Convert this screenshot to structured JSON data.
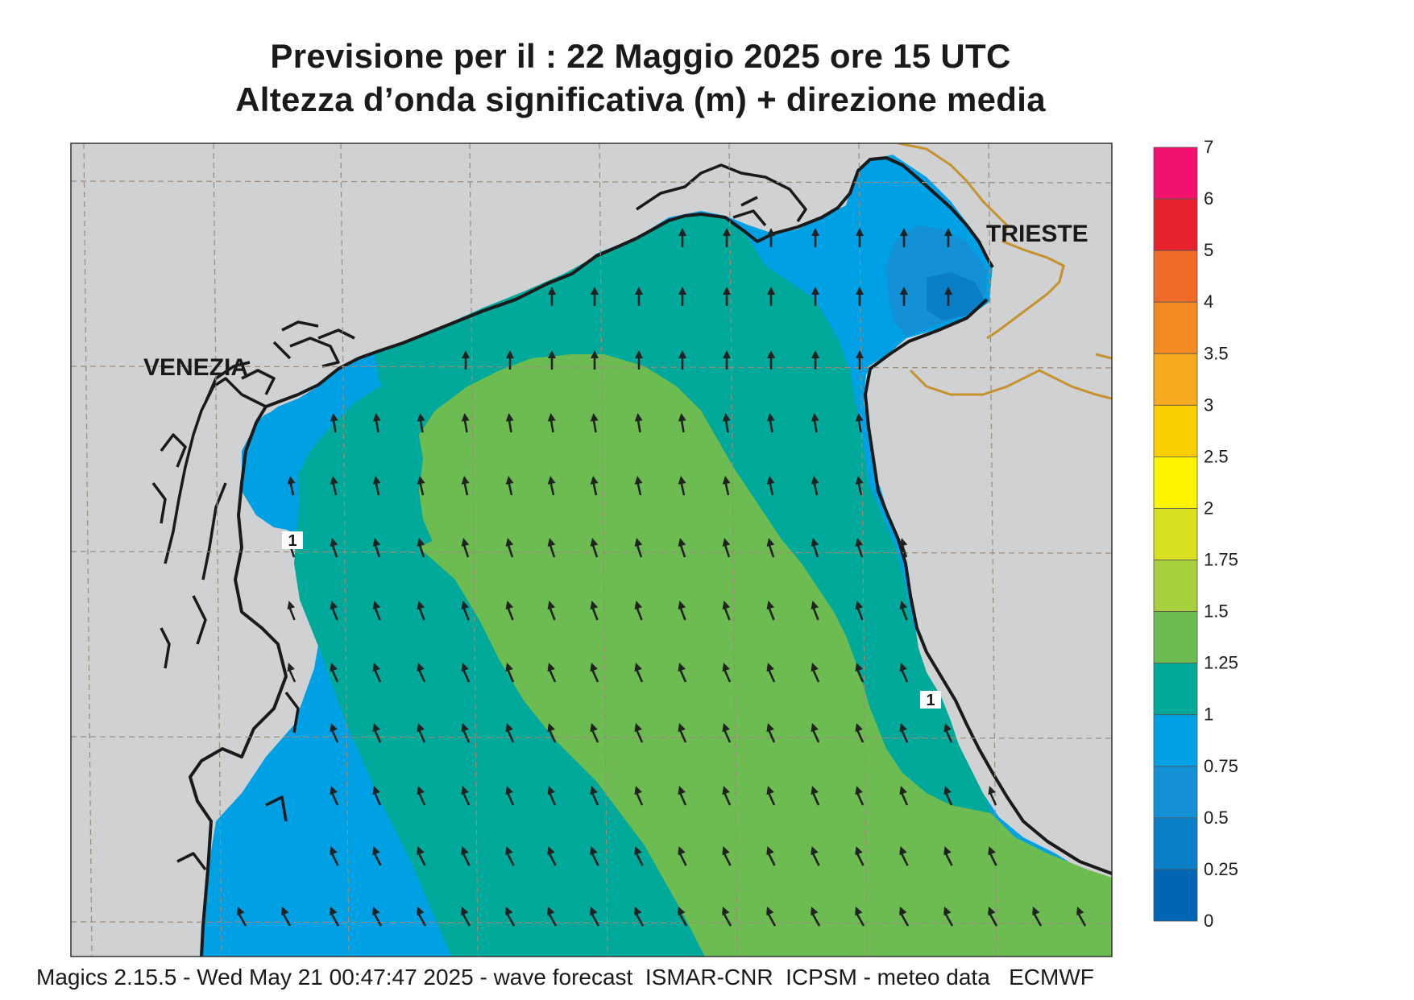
{
  "title": {
    "line1": "Previsione per il  :  22   Maggio  2025   ore 15 UTC",
    "line2": "Altezza d’onda significativa (m) + direzione media"
  },
  "places": {
    "venezia": "VENEZIA",
    "trieste": "TRIESTE"
  },
  "contour_labels": [
    "1",
    "1"
  ],
  "legend": {
    "labels": [
      "7",
      "6",
      "5",
      "4",
      "3.5",
      "3",
      "2.5",
      "2",
      "1.75",
      "1.5",
      "1.25",
      "1",
      "0.75",
      "0.5",
      "0.25",
      "0"
    ],
    "colors": [
      "#f0126e",
      "#e6232d",
      "#f06a28",
      "#f38a22",
      "#f8aa1e",
      "#fcd000",
      "#fff500",
      "#d9e020",
      "#a8cf3c",
      "#6cbc52",
      "#00a99a",
      "#00a0e4",
      "#1490d6",
      "#0a7fc8",
      "#0066b3"
    ]
  },
  "colors": {
    "land": "#d0d1d3",
    "coast": "#1a1a1a",
    "border": "#c8922a",
    "grid": "#9a8c7a",
    "arrow": "#222222"
  },
  "footer": "Magics 2.15.5 - Wed May 21 00:47:47 2025 - wave forecast  ISMAR-CNR  ICPSM - meteo data   ECMWF"
}
